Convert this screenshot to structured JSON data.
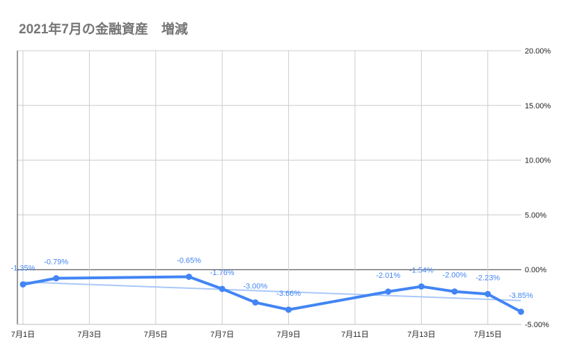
{
  "chart_data": {
    "type": "line",
    "title": "2021年7月の金融資産　増減",
    "x_tick_labels": [
      "7月1日",
      "7月3日",
      "7月5日",
      "7月7日",
      "7月9日",
      "7月11日",
      "7月13日",
      "7月15日"
    ],
    "x_tick_days": [
      1,
      3,
      5,
      7,
      9,
      11,
      13,
      15
    ],
    "y_tick_labels": [
      "20.00%",
      "15.00%",
      "10.00%",
      "5.00%",
      "0.00%",
      "-5.00%"
    ],
    "y_tick_values": [
      20,
      15,
      10,
      5,
      0,
      -5
    ],
    "ylim": [
      -5,
      20
    ],
    "y_axis_position": "right",
    "grid": true,
    "trendline": "linear",
    "series": [
      {
        "color": "#4285f4",
        "trend_color": "#a8c7fa",
        "points": [
          {
            "day": 1,
            "value": -1.35,
            "label": "-1.35%"
          },
          {
            "day": 2,
            "value": -0.79,
            "label": "-0.79%"
          },
          {
            "day": 6,
            "value": -0.65,
            "label": "-0.65%"
          },
          {
            "day": 7,
            "value": -1.76,
            "label": "-1.76%"
          },
          {
            "day": 8,
            "value": -3.0,
            "label": "-3.00%"
          },
          {
            "day": 9,
            "value": -3.66,
            "label": "-3.66%"
          },
          {
            "day": 12,
            "value": -2.01,
            "label": "-2.01%"
          },
          {
            "day": 13,
            "value": -1.54,
            "label": "-1.54%"
          },
          {
            "day": 14,
            "value": -2.0,
            "label": "-2.00%"
          },
          {
            "day": 15,
            "value": -2.23,
            "label": "-2.23%"
          },
          {
            "day": 16,
            "value": -3.85,
            "label": "-3.85%"
          }
        ]
      }
    ]
  }
}
